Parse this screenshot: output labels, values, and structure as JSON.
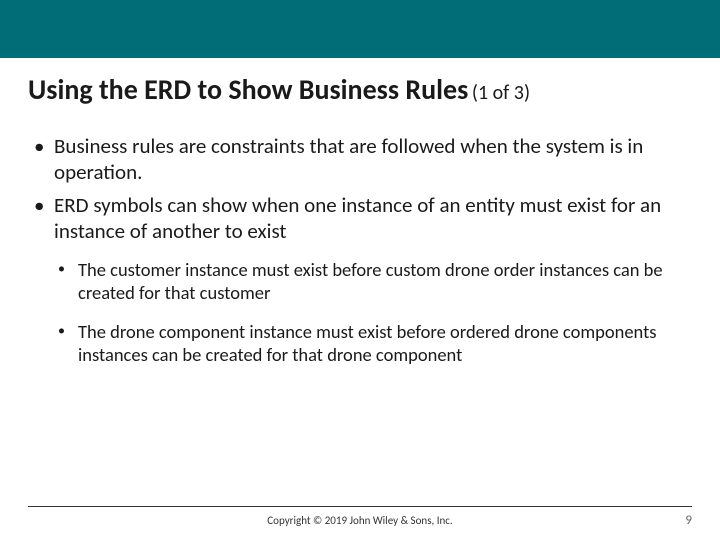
{
  "colors": {
    "top_bar": "#006d77",
    "background": "#ffffff",
    "text": "#1a1a1a",
    "footer_text": "#333333",
    "page_num": "#666666"
  },
  "title": {
    "main": "Using the ERD to Show Business Rules",
    "suffix": "(1 of 3)",
    "main_fontsize": 28,
    "suffix_fontsize": 20
  },
  "bullets": {
    "main": [
      "Business rules are constraints that are followed when the system is in operation.",
      "ERD symbols can show when one instance of an entity must exist for an instance of another to exist"
    ],
    "sub": [
      "The customer instance must exist before custom drone order instances can be created for that customer",
      "The drone component instance must exist before ordered drone components instances can be created for that drone component"
    ],
    "main_fontsize": 21,
    "sub_fontsize": 18.5
  },
  "footer": {
    "copyright": "Copyright © 2019 John Wiley & Sons, Inc.",
    "page_number": "9",
    "copyright_fontsize": 11,
    "pagenum_fontsize": 13
  }
}
